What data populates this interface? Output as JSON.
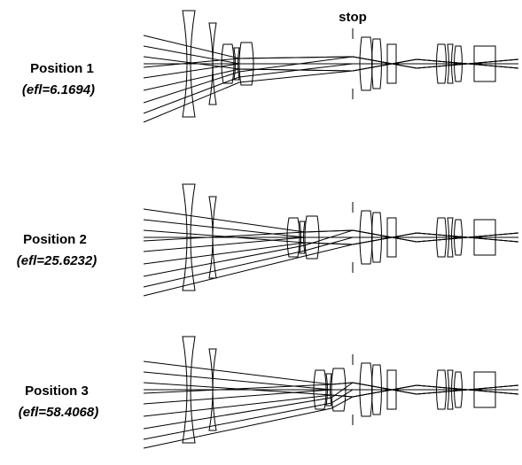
{
  "stop_label": "stop",
  "positions": [
    {
      "label": "Position 1",
      "efl": "(efl=6.1694)"
    },
    {
      "label": "Position 2",
      "efl": "(efl=25.6232)"
    },
    {
      "label": "Position 3",
      "efl": "(efl=58.4068)"
    }
  ]
}
